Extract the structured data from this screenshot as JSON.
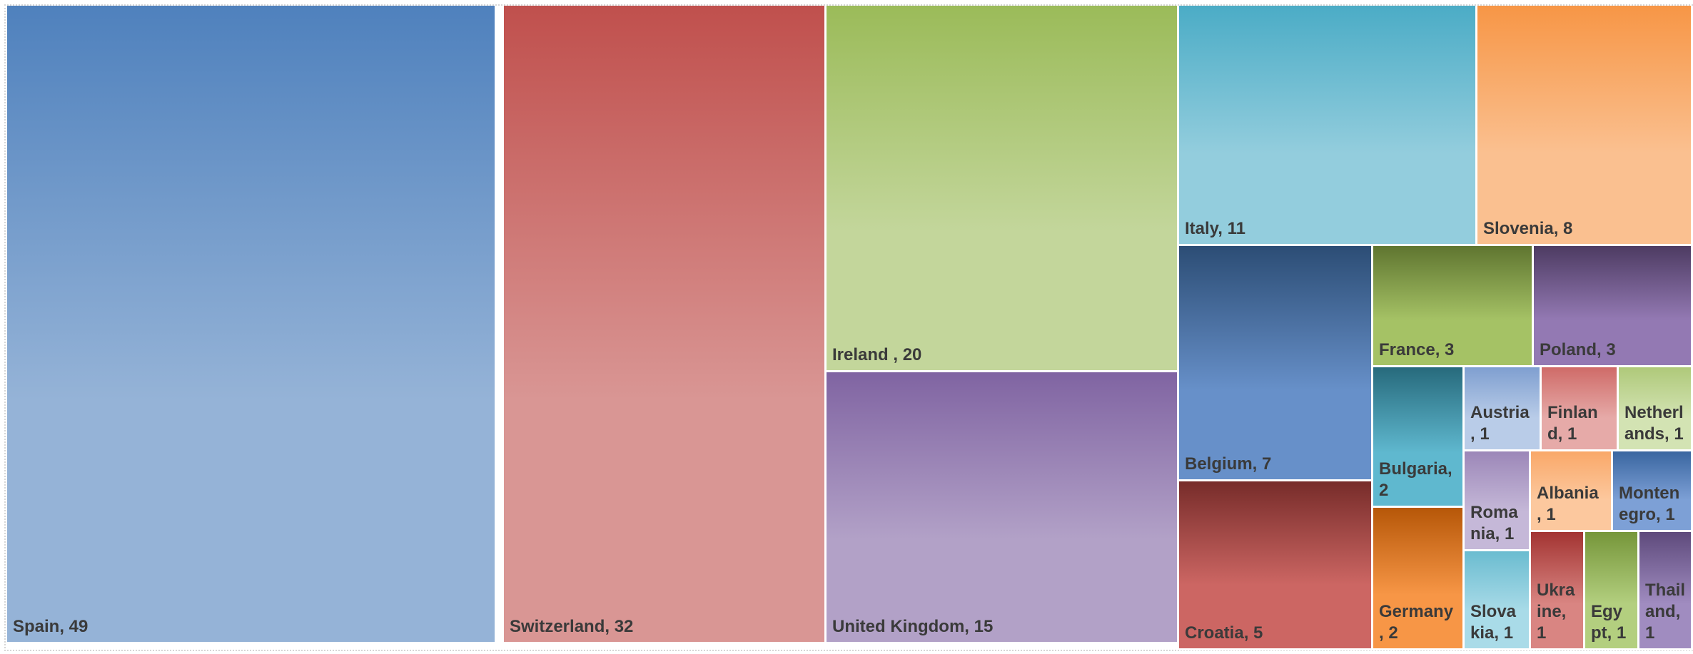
{
  "chart_data": {
    "type": "treemap",
    "items": [
      {
        "name": "Spain",
        "value": 49,
        "label": "Spain, 49",
        "color_top": "#4f81bd",
        "color_bottom": "#95b3d7"
      },
      {
        "name": "Switzerland",
        "value": 32,
        "label": "Switzerland, 32",
        "color_top": "#c0504d",
        "color_bottom": "#d99694"
      },
      {
        "name": "Ireland",
        "value": 20,
        "label": "Ireland , 20",
        "color_top": "#9bbb59",
        "color_bottom": "#c3d69b"
      },
      {
        "name": "United Kingdom",
        "value": 15,
        "label": "United Kingdom, 15",
        "color_top": "#8064a2",
        "color_bottom": "#b2a1c7"
      },
      {
        "name": "Italy",
        "value": 11,
        "label": "Italy, 11",
        "color_top": "#4bacc6",
        "color_bottom": "#93cddd"
      },
      {
        "name": "Slovenia",
        "value": 8,
        "label": "Slovenia, 8",
        "color_top": "#f79646",
        "color_bottom": "#fac090"
      },
      {
        "name": "Belgium",
        "value": 7,
        "label": "Belgium, 7",
        "color_top": "#2c4d75",
        "color_bottom": "#6790c9"
      },
      {
        "name": "Croatia",
        "value": 5,
        "label": "Croatia, 5",
        "color_top": "#772c2a",
        "color_bottom": "#cc6663"
      },
      {
        "name": "France",
        "value": 3,
        "label": "France, 3",
        "color_top": "#5f7530",
        "color_bottom": "#a5c265"
      },
      {
        "name": "Poland",
        "value": 3,
        "label": "Poland, 3",
        "color_top": "#4d3b62",
        "color_bottom": "#9379b3"
      },
      {
        "name": "Bulgaria",
        "value": 2,
        "label": "Bulgaria, 2",
        "color_top": "#276a7c",
        "color_bottom": "#5fb8cf"
      },
      {
        "name": "Germany",
        "value": 2,
        "label": "Germany , 2",
        "color_top": "#b65708",
        "color_bottom": "#f79646"
      },
      {
        "name": "Austria",
        "value": 1,
        "label": "Austria , 1",
        "color_top": "#7f9fd0",
        "color_bottom": "#b9cce8"
      },
      {
        "name": "Finland",
        "value": 1,
        "label": "Finlan d, 1",
        "color_top": "#cf6b68",
        "color_bottom": "#e6aaa8"
      },
      {
        "name": "Netherlands",
        "value": 1,
        "label": "Netherl ands, 1",
        "color_top": "#afc97a",
        "color_bottom": "#d3e3b3"
      },
      {
        "name": "Romania",
        "value": 1,
        "label": "Roma nia, 1",
        "color_top": "#9c87b8",
        "color_bottom": "#c5b8d8"
      },
      {
        "name": "Albania",
        "value": 1,
        "label": "Albania , 1",
        "color_top": "#f9a869",
        "color_bottom": "#fcc89e"
      },
      {
        "name": "Montenegro",
        "value": 1,
        "label": "Monten egro, 1",
        "color_top": "#3a66a0",
        "color_bottom": "#7da0d6"
      },
      {
        "name": "Slovakia",
        "value": 1,
        "label": "Slova kia, 1",
        "color_top": "#6bbcd0",
        "color_bottom": "#a9dbe8"
      },
      {
        "name": "Ukraine",
        "value": 1,
        "label": "Ukra ine, 1",
        "color_top": "#a33432",
        "color_bottom": "#d98582"
      },
      {
        "name": "Egypt",
        "value": 1,
        "label": "Egy pt, 1",
        "color_top": "#76963a",
        "color_bottom": "#b3cf7f"
      },
      {
        "name": "Thailand",
        "value": 1,
        "label": "Thail and, 1",
        "color_top": "#5e4a7c",
        "color_bottom": "#a08cc0"
      }
    ]
  }
}
